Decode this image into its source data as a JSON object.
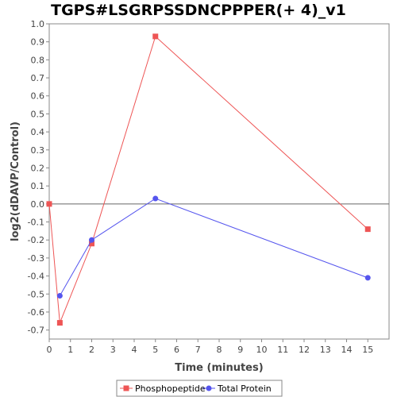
{
  "chart_data": {
    "type": "line",
    "title": "TGPS#LSGRPSSDNCPPPER(+ 4)_v1",
    "xlabel": "Time (minutes)",
    "ylabel": "log2(dDAVP/Control)",
    "xlim": [
      0,
      16
    ],
    "ylim": [
      -0.75,
      1.0
    ],
    "x_ticks": [
      0,
      1,
      2,
      3,
      4,
      5,
      6,
      7,
      8,
      9,
      10,
      11,
      12,
      13,
      14,
      15
    ],
    "y_ticks": [
      1.0,
      0.9,
      0.8,
      0.7,
      0.6,
      0.5,
      0.4,
      0.3,
      0.2,
      0.1,
      0.0,
      -0.1,
      -0.2,
      -0.3,
      -0.4,
      -0.5,
      -0.6,
      -0.7
    ],
    "x_tick_labels": [
      "0",
      "1",
      "2",
      "3",
      "4",
      "5",
      "6",
      "7",
      "8",
      "9",
      "10",
      "11",
      "12",
      "13",
      "14",
      "15"
    ],
    "y_tick_labels": [
      "1.0",
      "0.9",
      "0.8",
      "0.7",
      "0.6",
      "0.5",
      "0.4",
      "0.3",
      "0.2",
      "0.1",
      "0.0",
      "-0.1",
      "-0.2",
      "-0.3",
      "-0.4",
      "-0.5",
      "-0.6",
      "-0.7"
    ],
    "zero_line": true,
    "grid": false,
    "legend_position": "bottom",
    "series": [
      {
        "name": "Phosphopeptide",
        "color": "#ee5555",
        "marker": "square",
        "x": [
          0,
          0.5,
          2,
          5,
          15
        ],
        "y": [
          0.0,
          -0.66,
          -0.22,
          0.93,
          -0.14
        ]
      },
      {
        "name": "Total Protein",
        "color": "#5555ee",
        "marker": "circle",
        "x": [
          0.5,
          2,
          5,
          15
        ],
        "y": [
          -0.51,
          -0.2,
          0.03,
          -0.41
        ]
      }
    ]
  }
}
